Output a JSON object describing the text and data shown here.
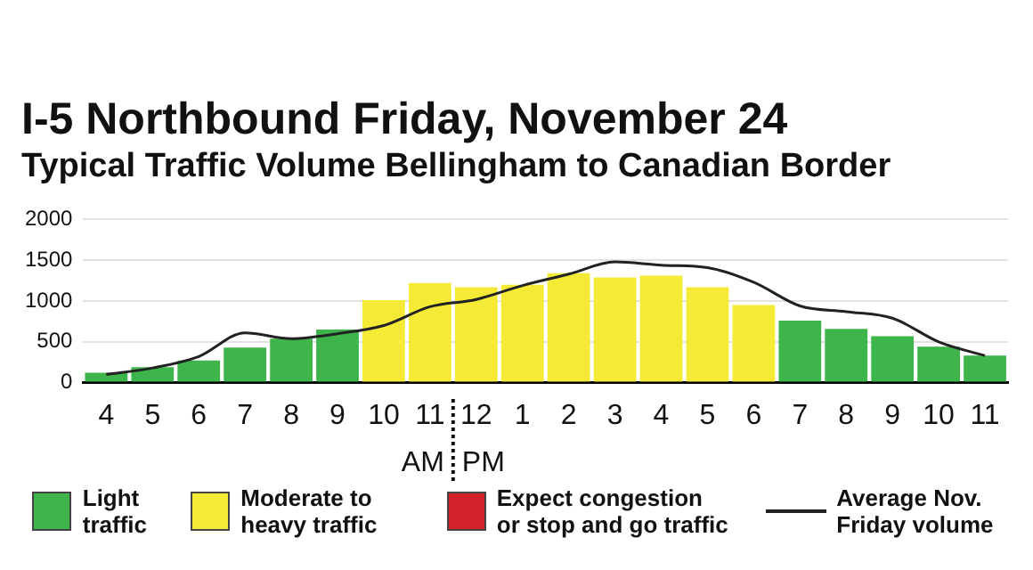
{
  "chart_data": {
    "type": "bar",
    "title": "I-5 Northbound Friday, November 24",
    "subtitle": "Typical Traffic Volume Bellingham to Canadian Border",
    "categories": [
      "4",
      "5",
      "6",
      "7",
      "8",
      "9",
      "10",
      "11",
      "12",
      "1",
      "2",
      "3",
      "4",
      "5",
      "6",
      "7",
      "8",
      "9",
      "10",
      "11"
    ],
    "stacked": true,
    "series": [
      {
        "name": "Light traffic",
        "color": "#3db54a",
        "values": [
          120,
          190,
          270,
          430,
          540,
          650,
          null,
          null,
          null,
          null,
          null,
          null,
          null,
          null,
          null,
          760,
          660,
          570,
          440,
          330
        ]
      },
      {
        "name": "Moderate to heavy traffic",
        "color": "#f5eb37",
        "values": [
          null,
          null,
          null,
          null,
          null,
          null,
          1010,
          1220,
          1170,
          1200,
          1340,
          1290,
          1310,
          1170,
          950,
          null,
          null,
          null,
          null,
          null
        ]
      },
      {
        "name": "Expect congestion or stop and go traffic",
        "color": "#d12229",
        "values": [
          null,
          null,
          null,
          null,
          null,
          null,
          null,
          null,
          null,
          null,
          null,
          null,
          null,
          null,
          null,
          null,
          null,
          null,
          null,
          null
        ]
      },
      {
        "name": "Average Nov. Friday volume",
        "type": "line",
        "color": "#222222",
        "marker": "none",
        "values": [
          100,
          180,
          320,
          610,
          540,
          600,
          700,
          930,
          1020,
          1190,
          1330,
          1480,
          1440,
          1410,
          1230,
          940,
          870,
          790,
          500,
          330
        ]
      }
    ],
    "annotations": [
      "AM",
      "PM"
    ],
    "ylim": [
      0,
      2000
    ],
    "yticks": [
      0,
      500,
      1000,
      1500,
      2000
    ],
    "grid": "y",
    "legend": "bottom"
  }
}
